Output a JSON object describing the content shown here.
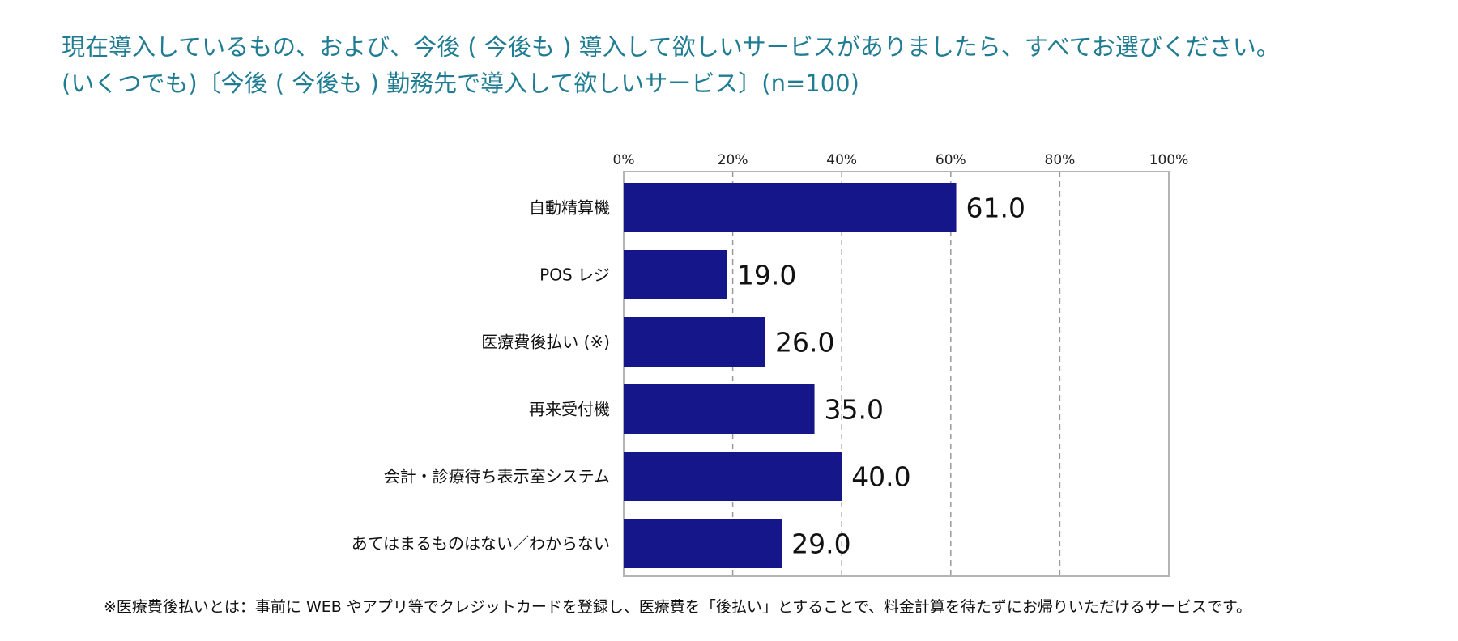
{
  "title": {
    "line1": "現在導入しているもの、および、今後 ( 今後も ) 導入して欲しいサービスがありましたら、すべてお選びください。",
    "line2": "(いくつでも)〔今後 ( 今後も ) 勤務先で導入して欲しいサービス〕(n=100)"
  },
  "colors": {
    "title": "#1f7c93",
    "bar": "#15168a",
    "grid": "#9a9a9a",
    "frame": "#b4b4b4"
  },
  "chart_data": {
    "type": "bar",
    "orientation": "horizontal",
    "categories": [
      "自動精算機",
      "POS レジ",
      "医療費後払い (※)",
      "再来受付機",
      "会計・診療待ち表示室システム",
      "あてはまるものはない／わからない"
    ],
    "values": [
      61.0,
      19.0,
      26.0,
      35.0,
      40.0,
      29.0
    ],
    "value_labels": [
      "61.0",
      "19.0",
      "26.0",
      "35.0",
      "40.0",
      "29.0"
    ],
    "xlim": [
      0,
      100
    ],
    "ticks": [
      0,
      20,
      40,
      60,
      80,
      100
    ],
    "tick_labels": [
      "0%",
      "20%",
      "40%",
      "60%",
      "80%",
      "100%"
    ],
    "grid": "dashed-vertical",
    "axis_position": "top",
    "xlabel": "",
    "ylabel": ""
  },
  "footnote": "※医療費後払いとは：事前に WEB やアプリ等でクレジットカードを登録し、医療費を「後払い」とすることで、料金計算を待たずにお帰りいただけるサービスです。"
}
